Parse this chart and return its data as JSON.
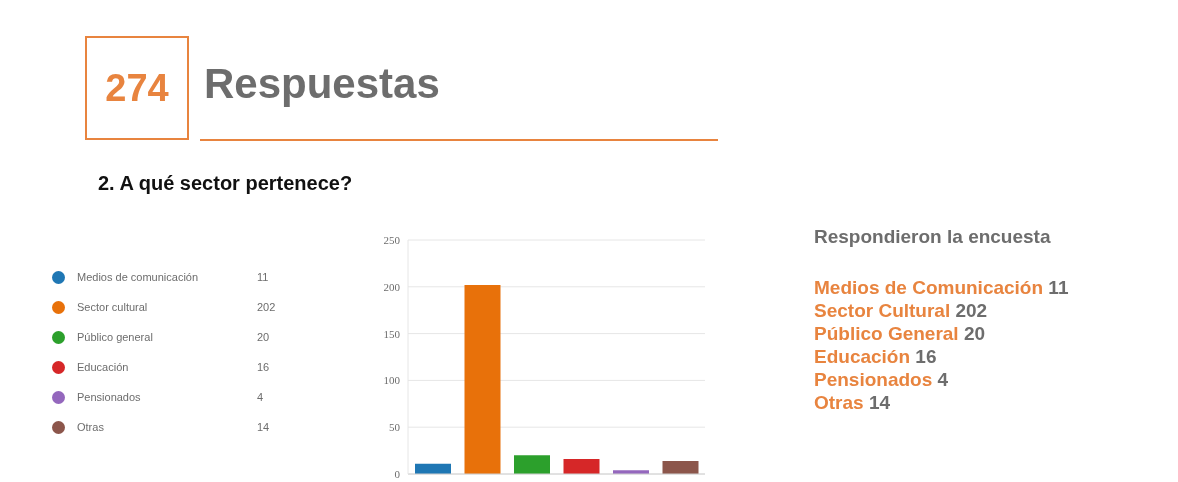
{
  "chart_data": [
    {
      "type": "other",
      "title": "2. A qué sector pertenece?",
      "annotations": [
        "274",
        "Respuestas"
      ],
      "categories": [
        "Medios de comunicación",
        "Sector cultural",
        "Público general",
        "Educación",
        "Pensionados",
        "Otras"
      ],
      "values": [
        11,
        202,
        20,
        16,
        4,
        14
      ],
      "colors": [
        "#1f77b4",
        "#e8710a",
        "#2ca02c",
        "#d62728",
        "#9467bd",
        "#8c564b"
      ],
      "data_labels": true
    },
    {
      "type": "bar",
      "categories": [
        null,
        null,
        null,
        null,
        null,
        null
      ],
      "values": [
        11,
        202,
        20,
        16,
        4,
        14
      ],
      "colors": [
        "#1f77b4",
        "#e8710a",
        "#2ca02c",
        "#d62728",
        "#9467bd",
        "#8c564b"
      ],
      "ylim": [
        0,
        250
      ],
      "yticks": [
        0,
        50,
        100,
        150,
        200,
        250
      ],
      "grid": "y",
      "tick_labels": "y"
    },
    {
      "type": "other",
      "title": "Respondieron la encuesta",
      "categories": [
        "Medios de Comunicación",
        "Sector Cultural",
        "Público General",
        "Educación",
        "Pensionados",
        "Otras"
      ],
      "values": [
        11,
        202,
        20,
        16,
        4,
        14
      ],
      "data_labels": true
    }
  ]
}
